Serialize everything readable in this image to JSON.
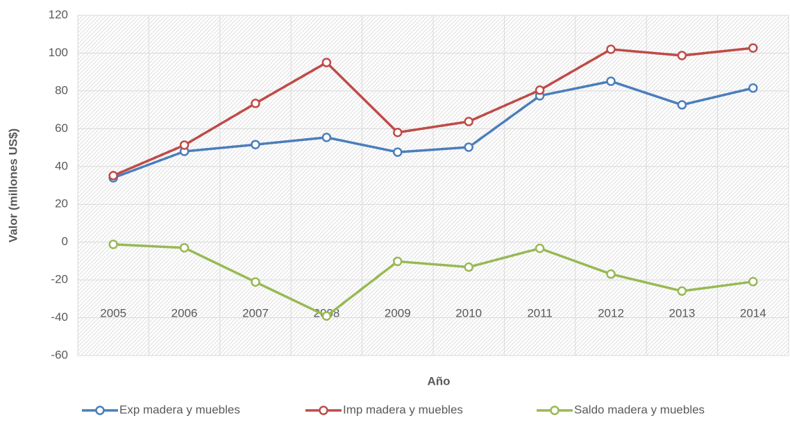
{
  "chart_data": {
    "type": "line",
    "x_label": "Año",
    "y_label": "Valor (millones US$)",
    "categories": [
      "2005",
      "2006",
      "2007",
      "2008",
      "2009",
      "2010",
      "2011",
      "2012",
      "2013",
      "2014"
    ],
    "series": [
      {
        "name": "Exp madera y muebles",
        "color": "#4a7ebb",
        "values": [
          34,
          48,
          51.6,
          55.4,
          47.6,
          50.2,
          77.4,
          85.1,
          72.6,
          81.5
        ]
      },
      {
        "name": "Imp madera y muebles",
        "color": "#be4b48",
        "values": [
          35.2,
          51.3,
          73.4,
          95,
          58,
          63.8,
          80.4,
          102,
          98.7,
          102.7
        ]
      },
      {
        "name": "Saldo madera y muebles",
        "color": "#98b954",
        "values": [
          -1.2,
          -3,
          -21.1,
          -39.1,
          -10.2,
          -13.2,
          -3.3,
          -16.9,
          -25.9,
          -20.9
        ]
      }
    ],
    "ylim": [
      -60,
      120
    ],
    "yticks": [
      -60,
      -40,
      -20,
      0,
      20,
      40,
      60,
      80,
      100,
      120
    ],
    "grid": true,
    "legend": "bottom"
  }
}
